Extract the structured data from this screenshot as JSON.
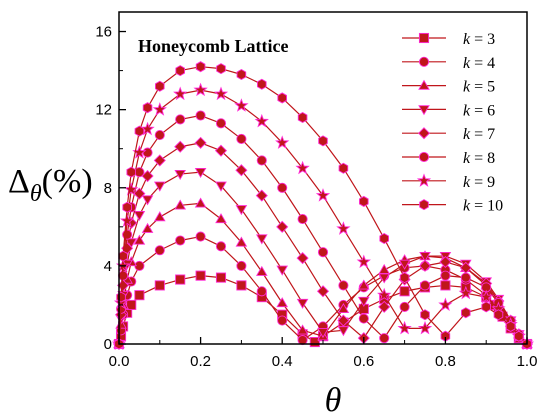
{
  "chart_data": {
    "type": "line",
    "title": "Honeycomb Lattice",
    "xlabel": "θ",
    "ylabel": "Δθ(%)",
    "xlim": [
      0,
      1
    ],
    "ylim": [
      0,
      17
    ],
    "xticks": [
      0.0,
      0.2,
      0.4,
      0.6,
      0.8,
      1.0
    ],
    "xtick_labels": [
      "0.0",
      "0.2",
      "0.4",
      "0.6",
      "0.8",
      "1.0"
    ],
    "yticks": [
      0,
      4,
      8,
      12,
      16
    ],
    "ytick_labels": [
      "0",
      "4",
      "8",
      "12",
      "16"
    ],
    "grid": false,
    "legend_position": "top-right",
    "line_color": "#c0161b",
    "marker_edge_color": "#ff2bd6",
    "series": [
      {
        "name": "k = 3",
        "label_prefix": "k",
        "label_value": "= 3",
        "marker": "square",
        "x": [
          0.0,
          0.005,
          0.01,
          0.02,
          0.03,
          0.05,
          0.1,
          0.15,
          0.2,
          0.25,
          0.3,
          0.35,
          0.4,
          0.45,
          0.48,
          0.5,
          0.55,
          0.6,
          0.65,
          0.7,
          0.75,
          0.8,
          0.85,
          0.9,
          0.92,
          0.94,
          0.96,
          0.98,
          1.0
        ],
        "values": [
          0.0,
          0.4,
          0.9,
          1.6,
          2.0,
          2.5,
          3.0,
          3.3,
          3.5,
          3.4,
          3.0,
          2.4,
          1.5,
          0.5,
          0.1,
          0.4,
          1.1,
          1.8,
          2.3,
          2.7,
          2.9,
          3.0,
          2.9,
          2.4,
          2.0,
          1.4,
          0.8,
          0.3,
          0.0
        ]
      },
      {
        "name": "k = 4",
        "label_prefix": "k",
        "label_value": "= 4",
        "marker": "circle",
        "x": [
          0.0,
          0.005,
          0.01,
          0.02,
          0.03,
          0.05,
          0.1,
          0.15,
          0.2,
          0.25,
          0.3,
          0.35,
          0.4,
          0.45,
          0.5,
          0.55,
          0.6,
          0.65,
          0.7,
          0.75,
          0.8,
          0.85,
          0.9,
          0.93,
          0.96,
          0.98,
          1.0
        ],
        "values": [
          0.0,
          0.7,
          1.5,
          2.5,
          3.2,
          4.0,
          4.8,
          5.3,
          5.5,
          5.0,
          4.0,
          2.7,
          1.2,
          0.2,
          0.9,
          2.0,
          2.9,
          3.5,
          3.9,
          4.0,
          3.8,
          3.3,
          2.5,
          1.7,
          0.9,
          0.4,
          0.0
        ]
      },
      {
        "name": "k = 5",
        "label_prefix": "k",
        "label_value": "= 5",
        "marker": "triangle-up",
        "x": [
          0.0,
          0.005,
          0.01,
          0.02,
          0.03,
          0.05,
          0.07,
          0.1,
          0.15,
          0.2,
          0.25,
          0.3,
          0.35,
          0.4,
          0.45,
          0.5,
          0.55,
          0.6,
          0.65,
          0.7,
          0.75,
          0.8,
          0.85,
          0.9,
          0.93,
          0.96,
          0.98,
          1.0
        ],
        "values": [
          0.0,
          1.0,
          2.0,
          3.3,
          4.2,
          5.3,
          5.9,
          6.5,
          7.1,
          7.2,
          6.4,
          5.2,
          3.7,
          2.1,
          0.7,
          0.4,
          1.8,
          3.0,
          3.8,
          4.3,
          4.5,
          4.4,
          3.9,
          3.0,
          2.1,
          1.1,
          0.5,
          0.0
        ]
      },
      {
        "name": "k = 6",
        "label_prefix": "k",
        "label_value": "= 6",
        "marker": "triangle-down",
        "x": [
          0.0,
          0.005,
          0.01,
          0.02,
          0.03,
          0.05,
          0.07,
          0.1,
          0.15,
          0.2,
          0.25,
          0.3,
          0.35,
          0.4,
          0.45,
          0.5,
          0.55,
          0.6,
          0.65,
          0.7,
          0.75,
          0.8,
          0.85,
          0.9,
          0.93,
          0.96,
          0.98,
          1.0
        ],
        "values": [
          0.0,
          1.3,
          2.5,
          4.1,
          5.2,
          6.6,
          7.4,
          8.1,
          8.7,
          8.8,
          8.1,
          6.9,
          5.4,
          3.8,
          2.1,
          0.6,
          0.7,
          2.2,
          3.4,
          4.1,
          4.5,
          4.5,
          4.1,
          3.2,
          2.3,
          1.2,
          0.5,
          0.0
        ]
      },
      {
        "name": "k = 7",
        "label_prefix": "k",
        "label_value": "= 7",
        "marker": "diamond",
        "x": [
          0.0,
          0.005,
          0.01,
          0.02,
          0.03,
          0.05,
          0.07,
          0.1,
          0.15,
          0.2,
          0.25,
          0.3,
          0.35,
          0.4,
          0.45,
          0.5,
          0.55,
          0.6,
          0.65,
          0.7,
          0.75,
          0.8,
          0.85,
          0.9,
          0.93,
          0.96,
          0.98,
          1.0
        ],
        "values": [
          0.0,
          1.5,
          3.0,
          4.9,
          6.2,
          7.7,
          8.6,
          9.4,
          10.1,
          10.3,
          9.9,
          8.9,
          7.6,
          6.0,
          4.4,
          2.7,
          1.2,
          0.3,
          1.9,
          3.3,
          4.0,
          4.2,
          3.9,
          3.1,
          2.2,
          1.2,
          0.5,
          0.0
        ]
      },
      {
        "name": "k = 8",
        "label_prefix": "k",
        "label_value": "= 8",
        "marker": "circle",
        "x": [
          0.0,
          0.005,
          0.01,
          0.02,
          0.03,
          0.05,
          0.07,
          0.1,
          0.15,
          0.2,
          0.25,
          0.3,
          0.35,
          0.4,
          0.45,
          0.5,
          0.55,
          0.6,
          0.65,
          0.7,
          0.75,
          0.8,
          0.85,
          0.9,
          0.93,
          0.96,
          0.98,
          1.0
        ],
        "values": [
          0.0,
          1.8,
          3.5,
          5.6,
          7.0,
          8.8,
          9.8,
          10.7,
          11.5,
          11.7,
          11.3,
          10.5,
          9.4,
          8.0,
          6.4,
          4.7,
          3.0,
          1.3,
          0.3,
          1.9,
          3.0,
          3.5,
          3.4,
          2.9,
          2.1,
          1.2,
          0.5,
          0.0
        ]
      },
      {
        "name": "k = 9",
        "label_prefix": "k",
        "label_value": "= 9",
        "marker": "star",
        "x": [
          0.0,
          0.005,
          0.01,
          0.02,
          0.03,
          0.05,
          0.07,
          0.1,
          0.15,
          0.2,
          0.25,
          0.3,
          0.35,
          0.4,
          0.45,
          0.5,
          0.55,
          0.6,
          0.65,
          0.7,
          0.75,
          0.8,
          0.85,
          0.9,
          0.93,
          0.96,
          0.98,
          1.0
        ],
        "values": [
          0.0,
          2.1,
          4.0,
          6.3,
          7.9,
          9.8,
          11.0,
          12.0,
          12.8,
          13.0,
          12.8,
          12.2,
          11.4,
          10.3,
          9.0,
          7.6,
          5.9,
          4.2,
          2.5,
          0.8,
          0.8,
          2.0,
          2.6,
          2.4,
          1.8,
          1.0,
          0.4,
          0.0
        ]
      },
      {
        "name": "k = 10",
        "label_prefix": "k",
        "label_value": "= 10",
        "marker": "hexagon",
        "x": [
          0.0,
          0.005,
          0.01,
          0.02,
          0.03,
          0.05,
          0.07,
          0.1,
          0.15,
          0.2,
          0.25,
          0.3,
          0.35,
          0.4,
          0.45,
          0.5,
          0.55,
          0.6,
          0.65,
          0.7,
          0.75,
          0.8,
          0.85,
          0.9,
          0.93,
          0.96,
          0.98,
          1.0
        ],
        "values": [
          0.0,
          2.4,
          4.5,
          7.0,
          8.8,
          10.9,
          12.1,
          13.2,
          14.0,
          14.2,
          14.1,
          13.8,
          13.3,
          12.6,
          11.6,
          10.4,
          9.0,
          7.3,
          5.4,
          3.4,
          1.5,
          0.4,
          1.6,
          1.9,
          1.5,
          0.9,
          0.4,
          0.0
        ]
      }
    ]
  }
}
